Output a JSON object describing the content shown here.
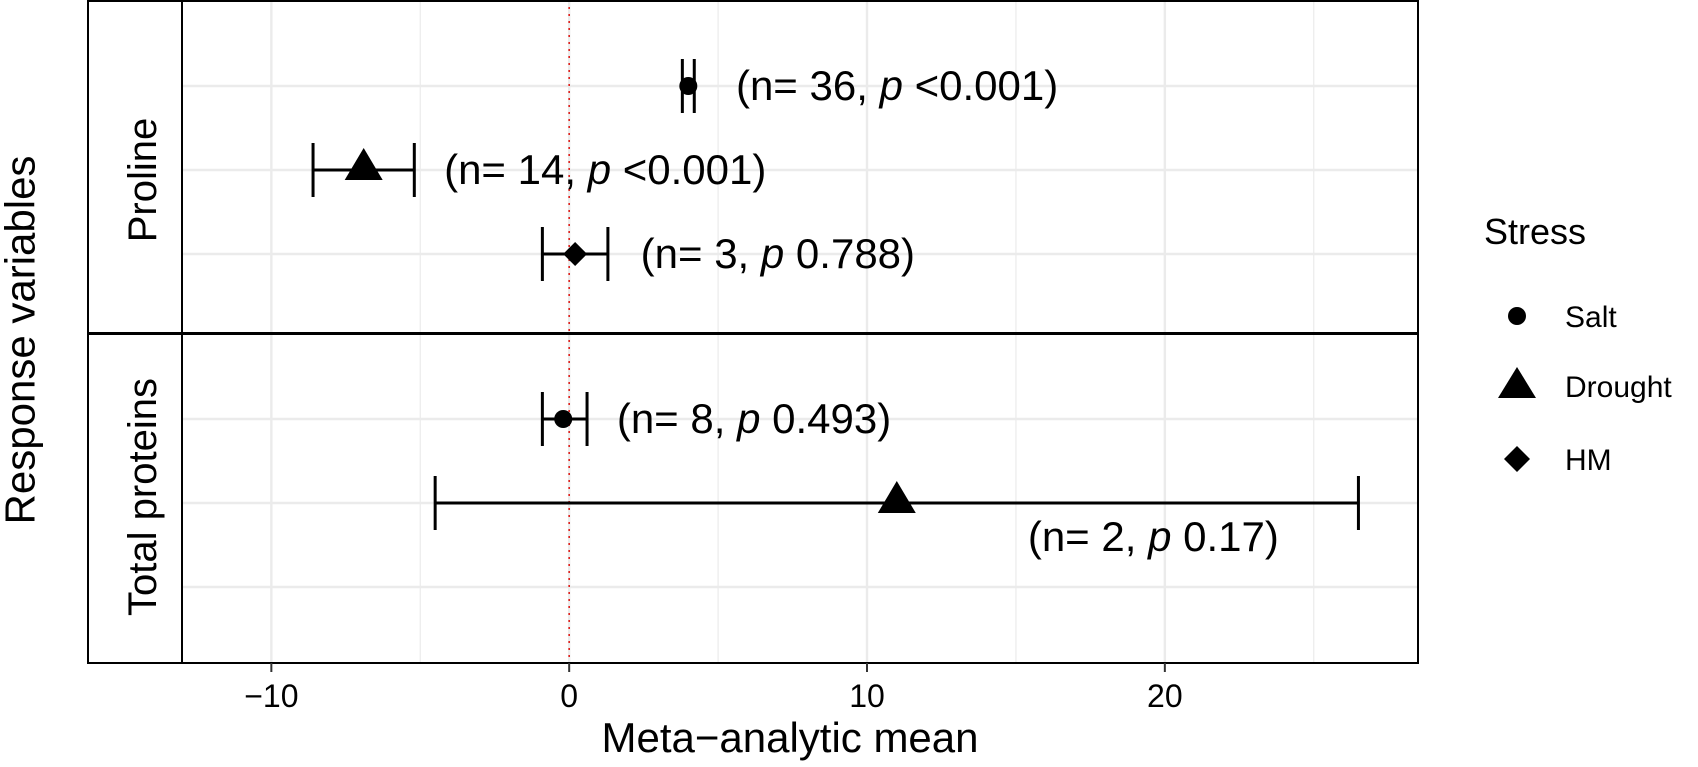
{
  "chart_data": {
    "type": "scatter",
    "subtype": "forest-plot",
    "xlabel": "Meta−analytic mean",
    "ylabel": "Response variables",
    "xlim": [
      -13,
      28.5
    ],
    "xticks": [
      -10,
      0,
      10,
      20
    ],
    "xtick_labels": [
      "−10",
      "0",
      "10",
      "20"
    ],
    "reference_line": {
      "x": 0,
      "color": "#e0201c",
      "style": "dotted"
    },
    "grid": true,
    "facets": [
      {
        "label": "Proline",
        "rows": 3
      },
      {
        "label": "Total proteins",
        "rows": 3
      }
    ],
    "legend": {
      "title": "Stress",
      "position": "right",
      "items": [
        {
          "name": "Salt",
          "shape": "circle"
        },
        {
          "name": "Drought",
          "shape": "triangle"
        },
        {
          "name": "HM",
          "shape": "diamond"
        }
      ]
    },
    "points": [
      {
        "facet": "Proline",
        "stress": "Salt",
        "mean": 4.0,
        "ci_low": 3.8,
        "ci_high": 4.2,
        "n": 36,
        "p_label": "<0.001",
        "label_x": 5.6
      },
      {
        "facet": "Proline",
        "stress": "Drought",
        "mean": -6.9,
        "ci_low": -8.6,
        "ci_high": -5.2,
        "n": 14,
        "p_label": "<0.001",
        "label_x": -4.2
      },
      {
        "facet": "Proline",
        "stress": "HM",
        "mean": 0.2,
        "ci_low": -0.9,
        "ci_high": 1.3,
        "n": 3,
        "p_label": "0.788",
        "label_x": 2.4
      },
      {
        "facet": "Total proteins",
        "stress": "Salt",
        "mean": -0.2,
        "ci_low": -0.9,
        "ci_high": 0.6,
        "n": 8,
        "p_label": "0.493",
        "label_x": 1.6
      },
      {
        "facet": "Total proteins",
        "stress": "Drought",
        "mean": 11.0,
        "ci_low": -4.5,
        "ci_high": 26.5,
        "n": 2,
        "p_label": "0.17",
        "label_x": 15.4
      }
    ],
    "colors": {
      "points": "#000000",
      "grid": "#ebebeb",
      "frame": "#000000"
    }
  }
}
